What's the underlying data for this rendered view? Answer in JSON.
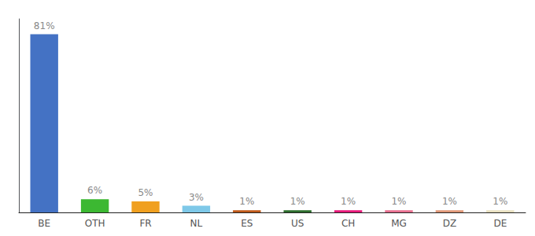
{
  "chart_data": {
    "type": "bar",
    "categories": [
      "BE",
      "OTH",
      "FR",
      "NL",
      "ES",
      "US",
      "CH",
      "MG",
      "DZ",
      "DE"
    ],
    "values": [
      81,
      6,
      5,
      3,
      1,
      1,
      1,
      1,
      1,
      1
    ],
    "value_labels": [
      "81%",
      "6%",
      "5%",
      "3%",
      "1%",
      "1%",
      "1%",
      "1%",
      "1%",
      "1%"
    ],
    "colors": [
      "#4472c4",
      "#3cb832",
      "#f0a020",
      "#7ec8e8",
      "#c05a1a",
      "#2d6e2d",
      "#e8197a",
      "#e87090",
      "#e09878",
      "#e8e0c0"
    ],
    "ylim": [
      0,
      88
    ],
    "yticks": [],
    "grid": false,
    "data_labels": true,
    "tick_labels": "x"
  }
}
